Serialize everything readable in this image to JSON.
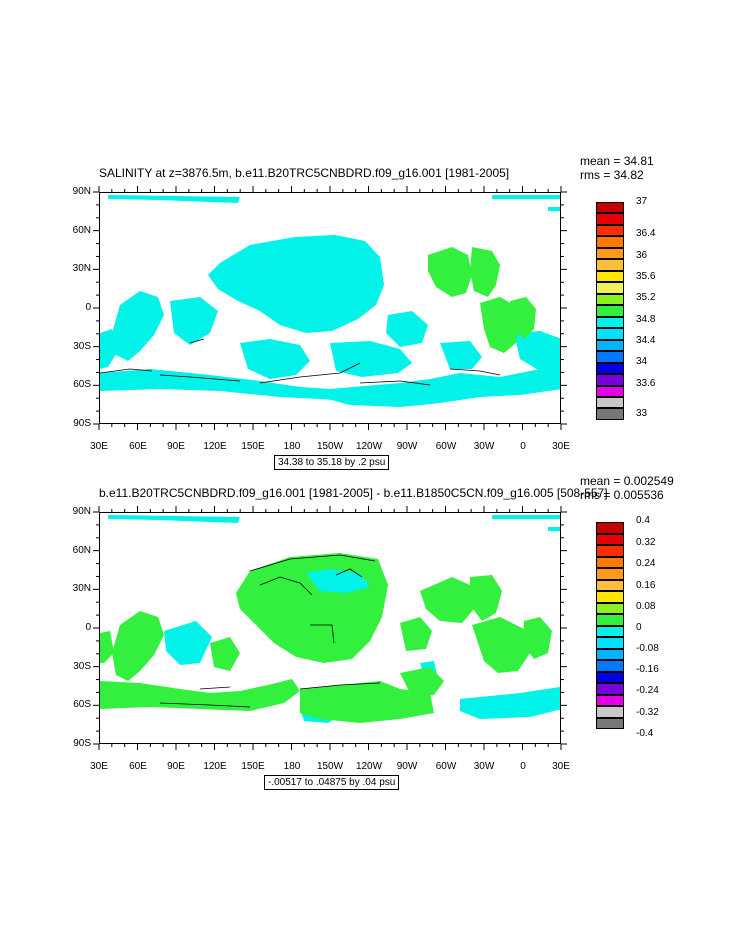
{
  "panels": [
    {
      "title": "SALINITY at z=3876.5m, b.e11.B20TRC5CNBDRD.f09_g16.001 [1981-2005]",
      "stats": {
        "mean": "mean = 34.81",
        "rms": "rms = 34.82"
      },
      "range_label": "34.38 to 35.18 by .2 psu",
      "legend_labels": [
        "37",
        "36.4",
        "36",
        "35.6",
        "35.2",
        "34.8",
        "34.4",
        "34",
        "33.6",
        "33"
      ],
      "colors": {
        "cyan": "#00f2e8",
        "green": "#33f03e"
      }
    },
    {
      "title": "b.e11.B20TRC5CNBDRD.f09_g16.001 [1981-2005] - b.e11.B1850C5CN.f09_g16.005 [508-557]",
      "stats": {
        "mean": "mean = 0.002549",
        "rms": "rms = 0.005536"
      },
      "range_label": "-.00517 to .04875 by .04 psu",
      "legend_labels": [
        "0.4",
        "0.32",
        "0.24",
        "0.16",
        "0.08",
        "0",
        "-0.08",
        "-0.16",
        "-0.24",
        "-0.32",
        "-0.4"
      ],
      "colors": {
        "cyan": "#00f2e8",
        "green": "#33f03e"
      }
    }
  ],
  "lat_labels": [
    "90N",
    "60N",
    "30N",
    "0",
    "30S",
    "60S",
    "90S"
  ],
  "lon_labels": [
    "30E",
    "60E",
    "90E",
    "120E",
    "150E",
    "180",
    "150W",
    "120W",
    "90W",
    "60W",
    "30W",
    "0",
    "30E"
  ],
  "legend_colors": [
    "#c80000",
    "#e6000a",
    "#ff2d00",
    "#ff7800",
    "#ff9a1e",
    "#ffbe37",
    "#ffe600",
    "#f0f05a",
    "#8cf01e",
    "#33f03e",
    "#00f2e8",
    "#00e0ff",
    "#00b4ff",
    "#0078ff",
    "#0000e6",
    "#7800dc",
    "#e600e6",
    "#c8c8c8",
    "#787878"
  ]
}
